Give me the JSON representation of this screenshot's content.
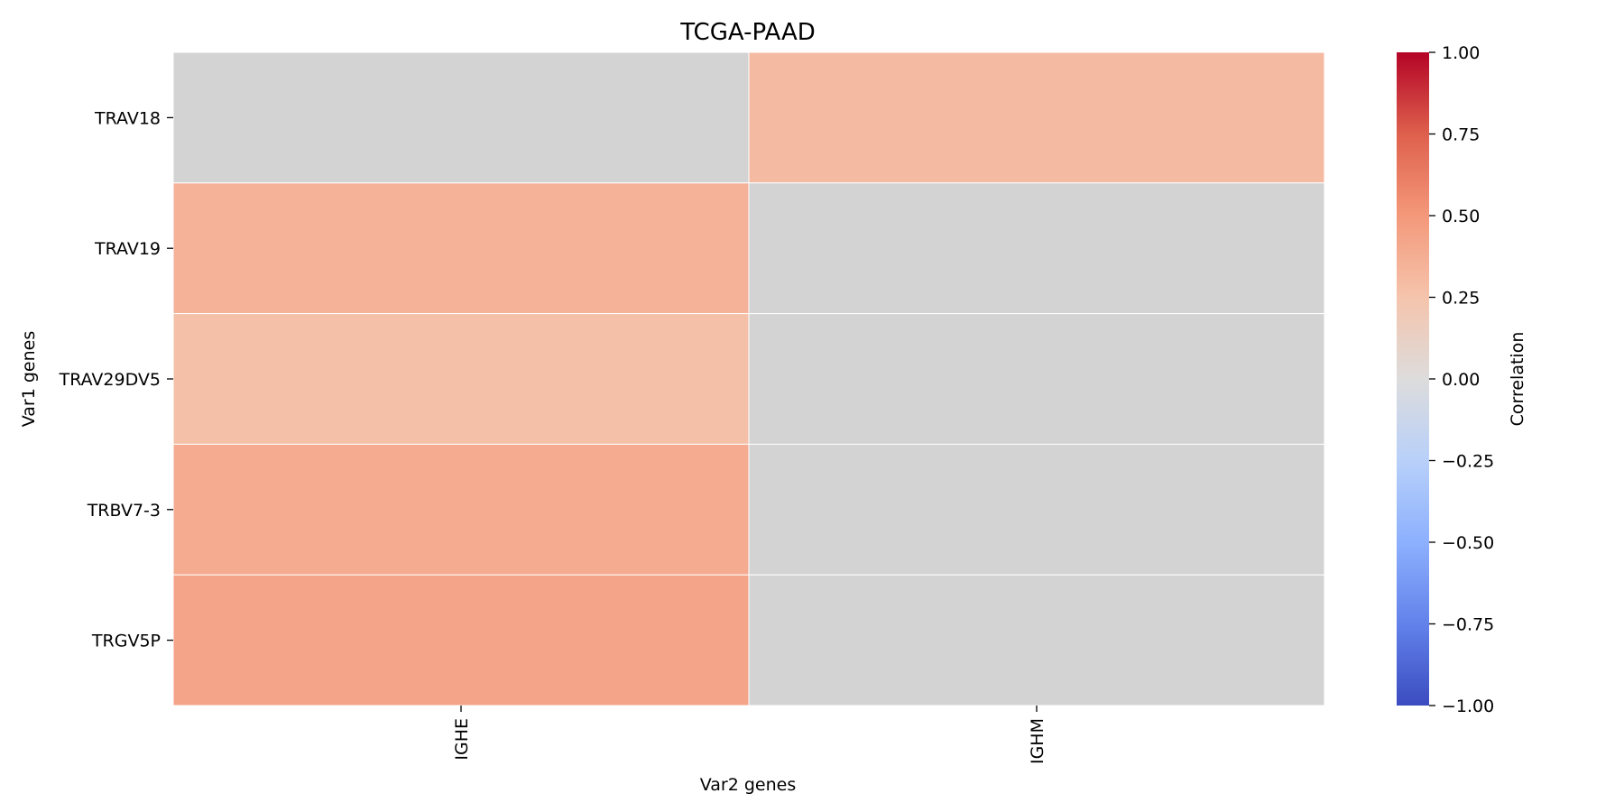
{
  "chart_data": {
    "type": "heatmap",
    "title": "TCGA-PAAD",
    "xlabel": "Var2 genes",
    "ylabel": "Var1 genes",
    "x_categories": [
      "IGHE",
      "IGHM"
    ],
    "y_categories": [
      "TRAV18",
      "TRAV19",
      "TRAV29DV5",
      "TRBV7-3",
      "TRGV5P"
    ],
    "values": [
      [
        null,
        0.3
      ],
      [
        0.35,
        null
      ],
      [
        0.27,
        null
      ],
      [
        0.39,
        null
      ],
      [
        0.43,
        null
      ]
    ],
    "missing_color": "#d3d3d3",
    "colormap": "coolwarm",
    "vmin": -1.0,
    "vmax": 1.0,
    "colorbar": {
      "label": "Correlation",
      "ticks": [
        1.0,
        0.75,
        0.5,
        0.25,
        0.0,
        -0.25,
        -0.5,
        -0.75,
        -1.0
      ],
      "tick_labels": [
        "1.00",
        "0.75",
        "0.50",
        "0.25",
        "0.00",
        "−0.25",
        "−0.50",
        "−0.75",
        "−1.00"
      ]
    }
  }
}
